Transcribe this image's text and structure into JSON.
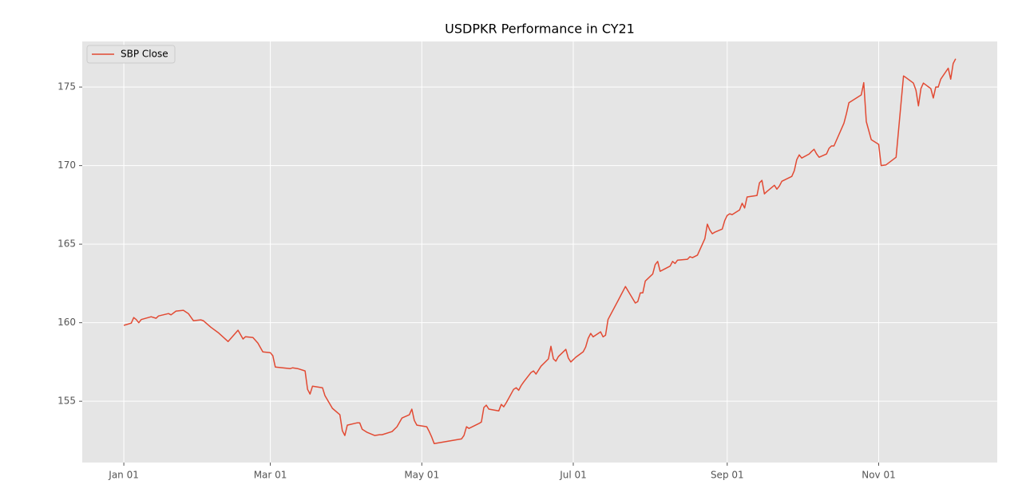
{
  "chart_data": {
    "type": "line",
    "title": "USDPKR Performance in CY21",
    "x": [
      "Jan 01",
      "Jan 04",
      "Jan 05",
      "Jan 06",
      "Jan 07",
      "Jan 08",
      "Jan 12",
      "Jan 14",
      "Jan 15",
      "Jan 19",
      "Jan 20",
      "Jan 22",
      "Jan 25",
      "Jan 27",
      "Jan 29",
      "Feb 01",
      "Feb 02",
      "Feb 05",
      "Feb 08",
      "Feb 12",
      "Feb 16",
      "Feb 18",
      "Feb 19",
      "Feb 22",
      "Feb 24",
      "Feb 26",
      "Mar 01",
      "Mar 02",
      "Mar 03",
      "Mar 09",
      "Mar 10",
      "Mar 12",
      "Mar 15",
      "Mar 16",
      "Mar 17",
      "Mar 18",
      "Mar 22",
      "Mar 23",
      "Mar 26",
      "Mar 29",
      "Mar 30",
      "Mar 31",
      "Apr 01",
      "Apr 05",
      "Apr 06",
      "Apr 07",
      "Apr 09",
      "Apr 12",
      "Apr 14",
      "Apr 15",
      "Apr 19",
      "Apr 21",
      "Apr 23",
      "Apr 26",
      "Apr 27",
      "Apr 28",
      "Apr 29",
      "May 03",
      "May 04",
      "May 05",
      "May 06",
      "May 17",
      "May 18",
      "May 19",
      "May 20",
      "May 24",
      "May 25",
      "May 26",
      "May 27",
      "May 28",
      "Jun 01",
      "Jun 02",
      "Jun 03",
      "Jun 04",
      "Jun 07",
      "Jun 08",
      "Jun 09",
      "Jun 10",
      "Jun 11",
      "Jun 14",
      "Jun 15",
      "Jun 16",
      "Jun 18",
      "Jun 21",
      "Jun 22",
      "Jun 23",
      "Jun 24",
      "Jun 25",
      "Jun 28",
      "Jun 29",
      "Jun 30",
      "Jul 02",
      "Jul 05",
      "Jul 06",
      "Jul 07",
      "Jul 08",
      "Jul 09",
      "Jul 12",
      "Jul 13",
      "Jul 14",
      "Jul 15",
      "Jul 19",
      "Jul 22",
      "Jul 26",
      "Jul 27",
      "Jul 28",
      "Jul 29",
      "Jul 30",
      "Aug 02",
      "Aug 03",
      "Aug 04",
      "Aug 05",
      "Aug 09",
      "Aug 10",
      "Aug 11",
      "Aug 12",
      "Aug 16",
      "Aug 17",
      "Aug 18",
      "Aug 20",
      "Aug 23",
      "Aug 24",
      "Aug 25",
      "Aug 26",
      "Aug 27",
      "Aug 30",
      "Aug 31",
      "Sep 01",
      "Sep 02",
      "Sep 03",
      "Sep 06",
      "Sep 07",
      "Sep 08",
      "Sep 09",
      "Sep 13",
      "Sep 14",
      "Sep 15",
      "Sep 16",
      "Sep 17",
      "Sep 20",
      "Sep 21",
      "Sep 22",
      "Sep 23",
      "Sep 27",
      "Sep 28",
      "Sep 29",
      "Sep 30",
      "Oct 01",
      "Oct 04",
      "Oct 05",
      "Oct 06",
      "Oct 07",
      "Oct 08",
      "Oct 11",
      "Oct 12",
      "Oct 13",
      "Oct 14",
      "Oct 18",
      "Oct 19",
      "Oct 20",
      "Oct 21",
      "Oct 25",
      "Oct 26",
      "Oct 27",
      "Oct 29",
      "Nov 01",
      "Nov 02",
      "Nov 04",
      "Nov 08",
      "Nov 11",
      "Nov 12",
      "Nov 15",
      "Nov 16",
      "Nov 17",
      "Nov 18",
      "Nov 19",
      "Nov 22",
      "Nov 23",
      "Nov 24",
      "Nov 25",
      "Nov 26",
      "Nov 29",
      "Nov 30",
      "Dec 01",
      "Dec 02"
    ],
    "series": [
      {
        "name": "SBP Close",
        "color": "#e24a33",
        "values": [
          159.83,
          159.97,
          160.33,
          160.2,
          160.0,
          160.2,
          160.38,
          160.28,
          160.43,
          160.58,
          160.5,
          160.74,
          160.79,
          160.58,
          160.13,
          160.18,
          160.13,
          159.72,
          159.37,
          158.8,
          159.52,
          158.96,
          159.11,
          159.06,
          158.7,
          158.14,
          158.09,
          157.9,
          157.18,
          157.08,
          157.13,
          157.08,
          156.93,
          155.76,
          155.46,
          155.96,
          155.86,
          155.36,
          154.55,
          154.14,
          153.12,
          152.82,
          153.48,
          153.63,
          153.63,
          153.22,
          153.02,
          152.82,
          152.87,
          152.87,
          153.07,
          153.38,
          153.93,
          154.14,
          154.5,
          153.78,
          153.48,
          153.38,
          153.07,
          152.72,
          152.31,
          152.6,
          152.82,
          153.38,
          153.27,
          153.58,
          153.68,
          154.6,
          154.75,
          154.5,
          154.39,
          154.8,
          154.65,
          154.9,
          155.76,
          155.86,
          155.7,
          156.0,
          156.22,
          156.83,
          156.93,
          156.73,
          157.23,
          157.7,
          158.5,
          157.7,
          157.55,
          157.84,
          158.3,
          157.75,
          157.5,
          157.8,
          158.15,
          158.45,
          159.0,
          159.32,
          159.1,
          159.42,
          159.1,
          159.2,
          160.2,
          161.4,
          162.3,
          161.25,
          161.35,
          161.9,
          161.9,
          162.65,
          163.1,
          163.7,
          163.9,
          163.27,
          163.6,
          163.9,
          163.77,
          163.98,
          164.04,
          164.2,
          164.14,
          164.3,
          165.35,
          166.27,
          165.9,
          165.66,
          165.76,
          165.96,
          166.5,
          166.83,
          166.93,
          166.88,
          167.18,
          167.6,
          167.3,
          168.0,
          168.1,
          168.9,
          169.06,
          168.2,
          168.35,
          168.75,
          168.5,
          168.7,
          169.0,
          169.31,
          169.67,
          170.38,
          170.68,
          170.48,
          170.74,
          170.9,
          171.04,
          170.74,
          170.53,
          170.74,
          171.1,
          171.25,
          171.25,
          172.7,
          173.3,
          174.0,
          174.1,
          174.5,
          175.28,
          172.8,
          171.65,
          171.35,
          170.0,
          170.05,
          170.53,
          175.7,
          175.6,
          175.25,
          174.8,
          173.8,
          174.9,
          175.25,
          174.9,
          174.3,
          175.0,
          175.0,
          175.5,
          176.2,
          175.5,
          176.5,
          176.8
        ]
      }
    ],
    "xticks": [
      "Jan 01",
      "Mar 01",
      "May 01",
      "Jul 01",
      "Sep 01",
      "Nov 01"
    ],
    "ylim": [
      151.1,
      177.9
    ],
    "yticks": [
      155,
      160,
      165,
      170,
      175
    ],
    "grid": true,
    "legend": "upper left"
  }
}
